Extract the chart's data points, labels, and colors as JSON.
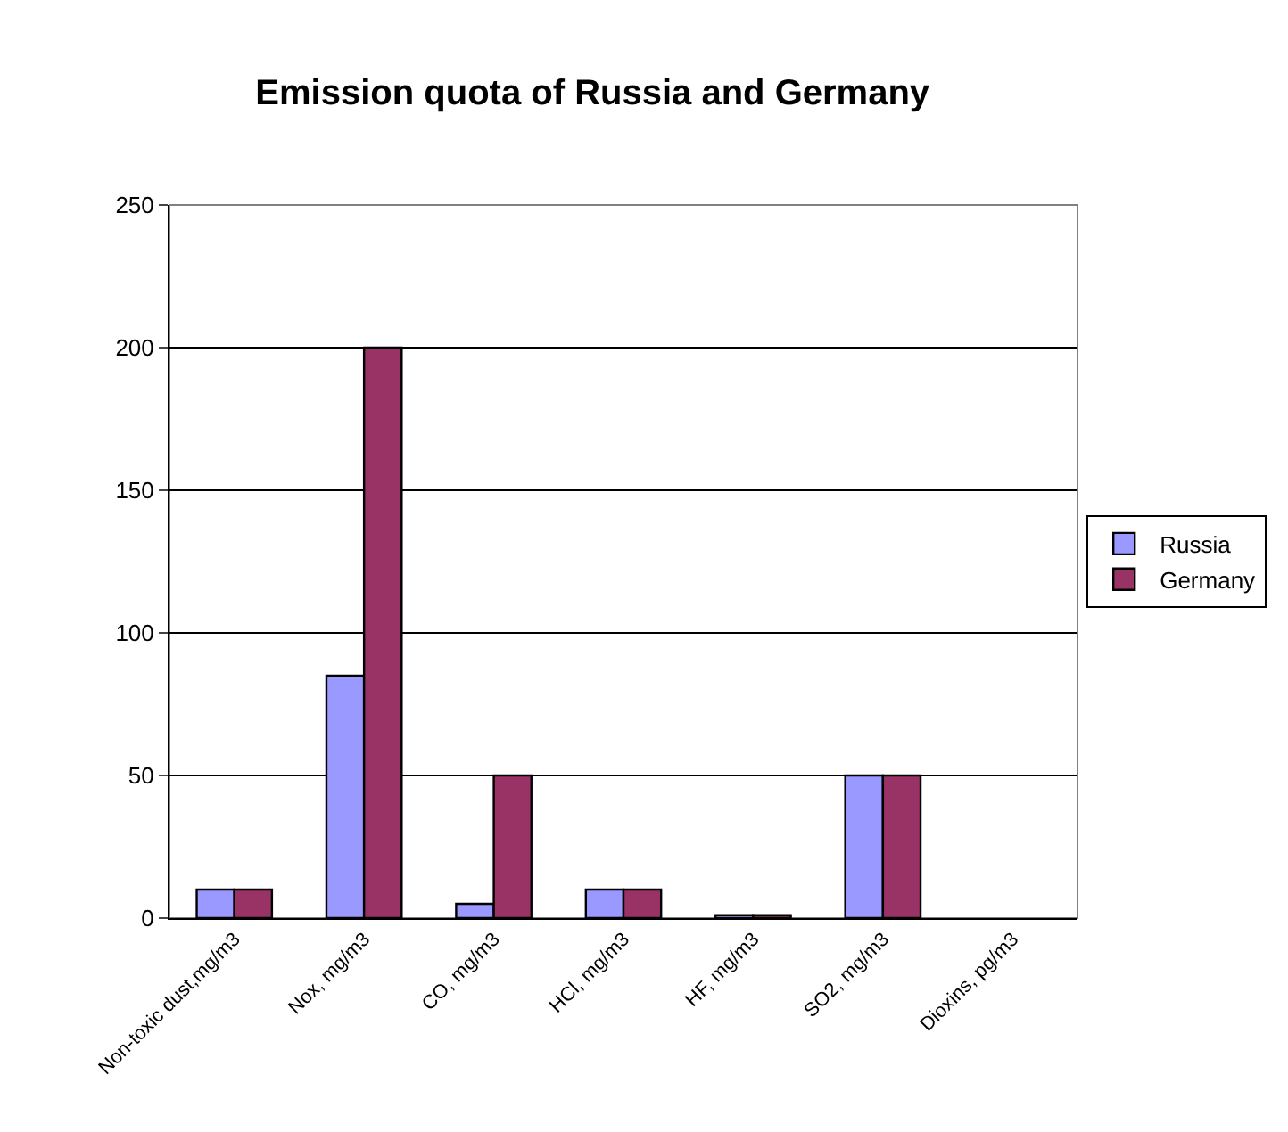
{
  "chart_data": {
    "type": "bar",
    "title": "Emission quota of Russia and Germany",
    "categories": [
      "Non-toxic dust,mg/m3",
      "Nox, mg/m3",
      "CO, mg/m3",
      "HCl, mg/m3",
      "HF, mg/m3",
      "SO2, mg/m3",
      "Dioxins, pg/m3"
    ],
    "series": [
      {
        "name": "Russia",
        "color": "#9999ff",
        "values": [
          10,
          85,
          5,
          10,
          1,
          50,
          null
        ]
      },
      {
        "name": "Germany",
        "color": "#993366",
        "values": [
          10,
          200,
          50,
          10,
          1,
          50,
          null
        ]
      }
    ],
    "ylim": [
      0,
      250
    ],
    "yticks": [
      0,
      50,
      100,
      150,
      200,
      250
    ],
    "grid": "y",
    "legend": "right"
  }
}
